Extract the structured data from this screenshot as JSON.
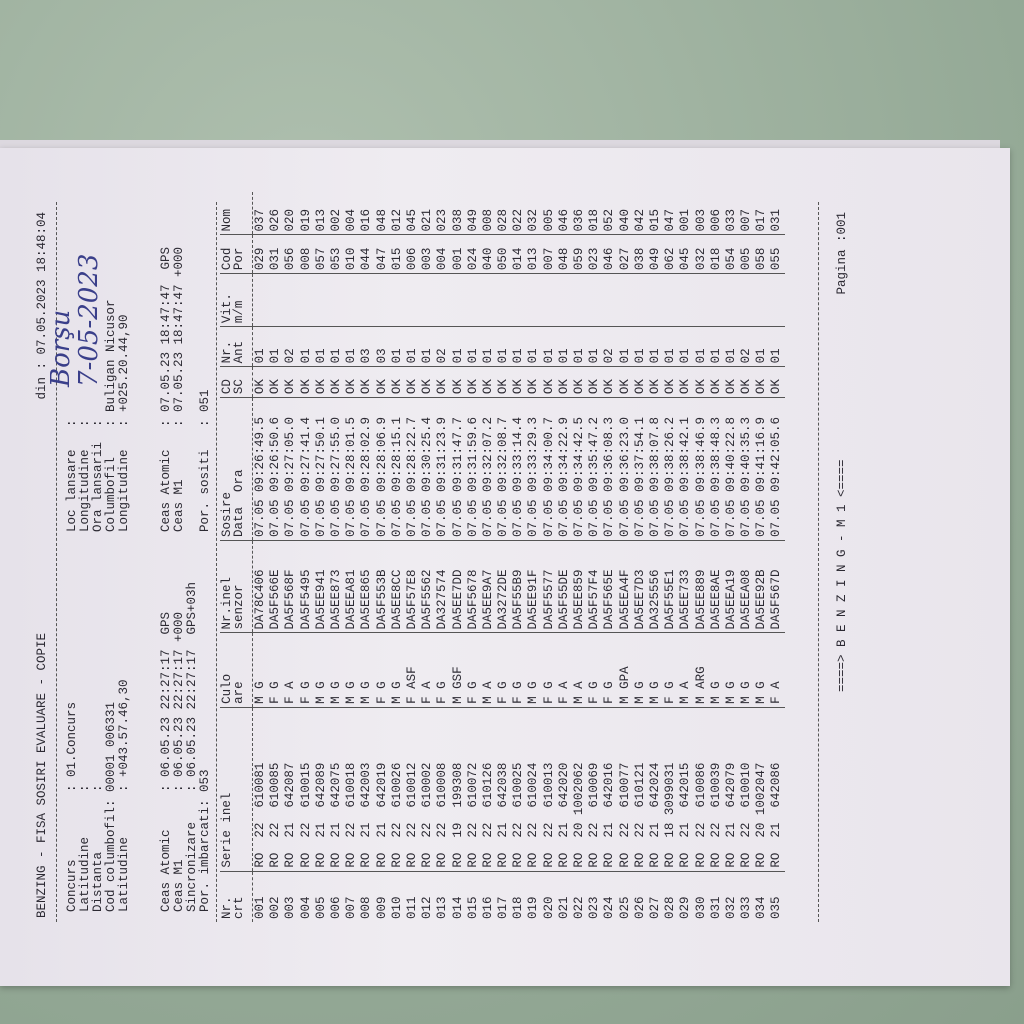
{
  "header": {
    "title": "BENZING - FISA SOSIRI EVALUARE - COPIE",
    "date": "din : 07.05.2023 18:48:04"
  },
  "info": {
    "left": [
      "Concurs         : 01.Concurs",
      "Latitudine      :",
      "Distanta        :",
      "Cod columbofil: 00001 006331",
      "Latitudine      : +043.57.46,30"
    ],
    "right": [
      "Loc lansare   :",
      "Longitudine   :",
      "Ora lansarii  :",
      "Columbofil    : Buligan Nicusor",
      "Longitudine   : +025.20.44,90"
    ],
    "handwritten_place": "Borşu",
    "handwritten_date": "7-05-2023"
  },
  "clock": {
    "left": [
      "Ceas Atomic     : 06.05.23 22:27:17  GPS",
      "Ceas M1         : 06.05.23 22:27:17 +000",
      "Sincronizare    : 06.05.23 22:27:17  GPS+03h",
      "Por. imbarcati: 053"
    ],
    "right": [
      "Ceas Atomic   : 07.05.23 18:47:47  GPS",
      "Ceas M1       : 07.05.23 18:47:47 +000",
      "",
      "Por. sositi   : 051"
    ]
  },
  "table": {
    "columns": [
      "Nr.\ncrt",
      "Serie inel",
      "Culo\nare",
      "Nr.inel\nsenzor",
      "Sosire\nData  Ora",
      "CD\nSC",
      "Nr.\nAnt",
      "Vit.\nm/m",
      "Cod\nPor",
      "Nom"
    ],
    "rows": [
      [
        "001",
        "RO  22  610081",
        "M G",
        "DA78C406",
        "07.05 09:26:49.5",
        "OK",
        "01",
        "029",
        "037"
      ],
      [
        "002",
        "RO  22  610085",
        "F G",
        "DA5F566E",
        "07.05 09:26:50.6",
        "OK",
        "01",
        "031",
        "026"
      ],
      [
        "003",
        "RO  21  642087",
        "F A",
        "DA5F568F",
        "07.05 09:27:05.0",
        "OK",
        "02",
        "056",
        "020"
      ],
      [
        "004",
        "RO  22  610015",
        "F G",
        "DA5F5495",
        "07.05 09:27:41.4",
        "OK",
        "01",
        "008",
        "019"
      ],
      [
        "005",
        "RO  21  642089",
        "M G",
        "DA5EE941",
        "07.05 09:27:50.1",
        "OK",
        "01",
        "057",
        "013"
      ],
      [
        "006",
        "RO  21  642075",
        "M G",
        "DA5EE873",
        "07.05 09:27:55.0",
        "OK",
        "01",
        "053",
        "002"
      ],
      [
        "007",
        "RO  22  610018",
        "M G",
        "DA5EEA81",
        "07.05 09:28:01.5",
        "OK",
        "01",
        "010",
        "004"
      ],
      [
        "008",
        "RO  21  642003",
        "M G",
        "DA5EE865",
        "07.05 09:28:02.9",
        "OK",
        "03",
        "044",
        "016"
      ],
      [
        "009",
        "RO  21  642019",
        "F G",
        "DA5F553B",
        "07.05 09:28:06.9",
        "OK",
        "03",
        "047",
        "048"
      ],
      [
        "010",
        "RO  22  610026",
        "M G",
        "DA5EE8CC",
        "07.05 09:28:15.1",
        "OK",
        "01",
        "015",
        "012"
      ],
      [
        "011",
        "RO  22  610012",
        "F ASF",
        "DA5F57E8",
        "07.05 09:28:22.7",
        "OK",
        "01",
        "006",
        "045"
      ],
      [
        "012",
        "RO  22  610002",
        "F A",
        "DA5F5562",
        "07.05 09:30:25.4",
        "OK",
        "01",
        "003",
        "021"
      ],
      [
        "013",
        "RO  22  610008",
        "F G",
        "DA327574",
        "07.05 09:31:23.9",
        "OK",
        "02",
        "004",
        "023"
      ],
      [
        "014",
        "RO  19  199308",
        "M GSF",
        "DA5EE7DD",
        "07.05 09:31:47.7",
        "OK",
        "01",
        "001",
        "038"
      ],
      [
        "015",
        "RO  22  610072",
        "F G",
        "DA5F5678",
        "07.05 09:31:59.6",
        "OK",
        "01",
        "024",
        "049"
      ],
      [
        "016",
        "RO  22  610126",
        "M A",
        "DA5EE9A7",
        "07.05 09:32:07.2",
        "OK",
        "01",
        "040",
        "008"
      ],
      [
        "017",
        "RO  21  642038",
        "F G",
        "DA3272DE",
        "07.05 09:32:08.7",
        "OK",
        "01",
        "050",
        "028"
      ],
      [
        "018",
        "RO  22  610025",
        "F G",
        "DA5F55B9",
        "07.05 09:33:14.4",
        "OK",
        "01",
        "014",
        "022"
      ],
      [
        "019",
        "RO  22  610024",
        "M G",
        "DA5EE91F",
        "07.05 09:33:29.3",
        "OK",
        "01",
        "013",
        "032"
      ],
      [
        "020",
        "RO  22  610013",
        "F G",
        "DA5F5577",
        "07.05 09:34:00.7",
        "OK",
        "01",
        "007",
        "005"
      ],
      [
        "021",
        "RO  21  642020",
        "F A",
        "DA5F55DE",
        "07.05 09:34:22.9",
        "OK",
        "01",
        "048",
        "046"
      ],
      [
        "022",
        "RO  20 1002062",
        "M A",
        "DA5EE859",
        "07.05 09:34:42.5",
        "OK",
        "01",
        "059",
        "036"
      ],
      [
        "023",
        "RO  22  610069",
        "F G",
        "DA5F57F4",
        "07.05 09:35:47.2",
        "OK",
        "01",
        "023",
        "018"
      ],
      [
        "024",
        "RO  21  642016",
        "F G",
        "DA5F565E",
        "07.05 09:36:08.3",
        "OK",
        "02",
        "046",
        "052"
      ],
      [
        "025",
        "RO  22  610077",
        "M GPA",
        "DA5EEA4F",
        "07.05 09:36:23.0",
        "OK",
        "01",
        "027",
        "040"
      ],
      [
        "026",
        "RO  22  610121",
        "M G",
        "DA5EE7D3",
        "07.05 09:37:54.1",
        "OK",
        "01",
        "038",
        "042"
      ],
      [
        "027",
        "RO  21  642024",
        "M G",
        "DA325556",
        "07.05 09:38:07.8",
        "OK",
        "01",
        "049",
        "015"
      ],
      [
        "028",
        "RO  18 3099031",
        "F G",
        "DA5F55E1",
        "07.05 09:38:26.2",
        "OK",
        "01",
        "062",
        "047"
      ],
      [
        "029",
        "RO  21  642015",
        "M A",
        "DA5EE733",
        "07.05 09:38:42.1",
        "OK",
        "01",
        "045",
        "001"
      ],
      [
        "030",
        "RO  22  610086",
        "M ARG",
        "DA5EE889",
        "07.05 09:38:46.9",
        "OK",
        "01",
        "032",
        "003"
      ],
      [
        "031",
        "RO  22  610039",
        "M G",
        "DA5EE8AE",
        "07.05 09:38:48.3",
        "OK",
        "01",
        "018",
        "006"
      ],
      [
        "032",
        "RO  21  642079",
        "M G",
        "DA5EEA19",
        "07.05 09:40:22.8",
        "OK",
        "01",
        "054",
        "033"
      ],
      [
        "033",
        "RO  22  610010",
        "M G",
        "DA5EEA08",
        "07.05 09:40:35.3",
        "OK",
        "02",
        "005",
        "007"
      ],
      [
        "034",
        "RO  20 1002047",
        "M G",
        "DA5EE92B",
        "07.05 09:41:16.9",
        "OK",
        "01",
        "058",
        "017"
      ],
      [
        "035",
        "RO  21  642086",
        "F A",
        "DA5F567D",
        "07.05 09:42:05.6",
        "OK",
        "01",
        "055",
        "031"
      ]
    ]
  },
  "footer": {
    "brand": "====> B E N Z I N G - M 1 <====",
    "page": "Pagina :001"
  }
}
